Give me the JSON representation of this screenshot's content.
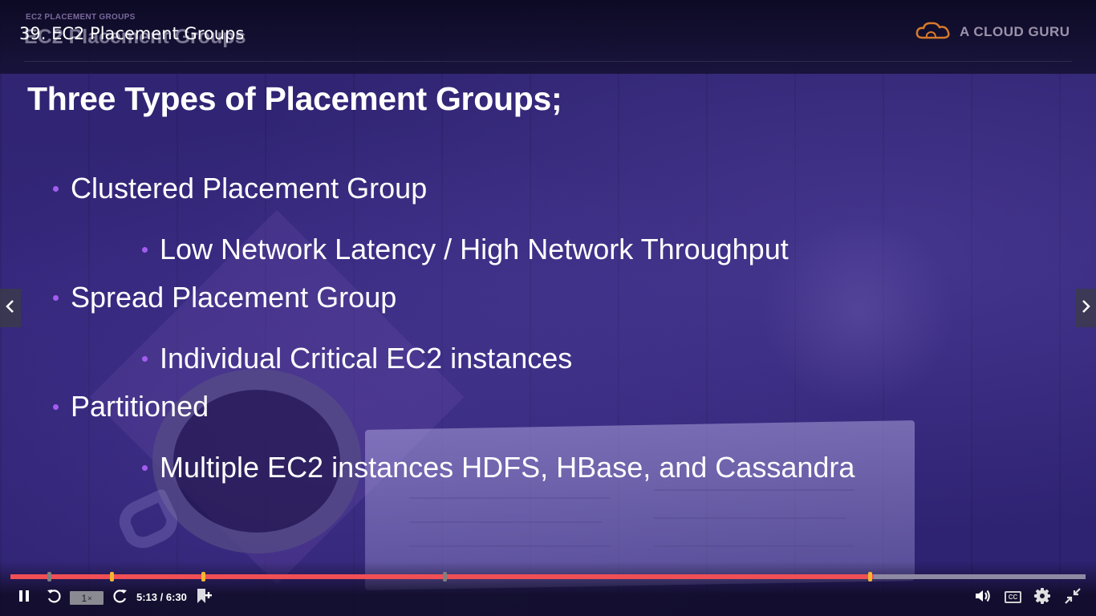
{
  "header": {
    "section_label": "EC2 PLACEMENT GROUPS",
    "slide_header": "EC2 Placement Groups",
    "video_title": "39. EC2 Placement Groups",
    "brand": "A CLOUD GURU"
  },
  "slide": {
    "title": "Three Types of Placement Groups;",
    "bullets": [
      {
        "level": 1,
        "text": "Clustered Placement Group"
      },
      {
        "level": 2,
        "text": "Low Network Latency / High Network Throughput"
      },
      {
        "level": 1,
        "text": "Spread Placement Group"
      },
      {
        "level": 2,
        "text": "Individual Critical EC2 instances"
      },
      {
        "level": 1,
        "text": "Partitioned"
      },
      {
        "level": 2,
        "text": "Multiple EC2 instances HDFS, HBase, and Cassandra"
      }
    ]
  },
  "player": {
    "speed": "1",
    "speed_unit": "×",
    "time": "5:13 / 6:30",
    "progress_fraction": 0.803,
    "buffered_fraction": 0.841,
    "chapter_markers": [
      {
        "fraction": 0.036,
        "color": "#7f7f7f"
      },
      {
        "fraction": 0.094,
        "color": "#f2b632"
      },
      {
        "fraction": 0.179,
        "color": "#f2b632"
      },
      {
        "fraction": 0.404,
        "color": "#7f7f7f"
      },
      {
        "fraction": 0.799,
        "color": "#f2b632"
      }
    ],
    "cc_label": "CC",
    "icons": {
      "pause": "pause-icon",
      "replay": "replay-10-icon",
      "forward": "forward-10-icon",
      "bookmark": "add-bookmark-icon",
      "volume": "volume-icon",
      "captions": "closed-captions-icon",
      "settings": "settings-gear-icon",
      "exit_fullscreen": "exit-fullscreen-icon",
      "prev": "chevron-left-icon",
      "next": "chevron-right-icon"
    }
  },
  "colors": {
    "progress": "#ef4f55",
    "buffer": "#8f8aa3",
    "bullet": "#a45cf0",
    "marker_gold": "#f2b632"
  }
}
